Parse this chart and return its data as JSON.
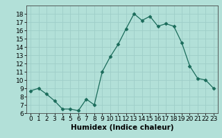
{
  "x": [
    0,
    1,
    2,
    3,
    4,
    5,
    6,
    7,
    8,
    9,
    10,
    11,
    12,
    13,
    14,
    15,
    16,
    17,
    18,
    19,
    20,
    21,
    22,
    23
  ],
  "y": [
    8.7,
    9.0,
    8.3,
    7.5,
    6.5,
    6.5,
    6.3,
    7.7,
    7.0,
    11.0,
    12.8,
    14.3,
    16.2,
    18.0,
    17.2,
    17.7,
    16.5,
    16.8,
    16.5,
    14.5,
    11.7,
    10.2,
    10.0,
    9.0
  ],
  "line_color": "#1a6b5a",
  "marker": "D",
  "marker_size": 2.5,
  "bg_color": "#b2e0d8",
  "grid_color": "#9ecec8",
  "xlabel": "Humidex (Indice chaleur)",
  "ylim": [
    6,
    19
  ],
  "xlim": [
    -0.5,
    23.5
  ],
  "yticks": [
    6,
    7,
    8,
    9,
    10,
    11,
    12,
    13,
    14,
    15,
    16,
    17,
    18
  ],
  "xticks": [
    0,
    1,
    2,
    3,
    4,
    5,
    6,
    7,
    8,
    9,
    10,
    11,
    12,
    13,
    14,
    15,
    16,
    17,
    18,
    19,
    20,
    21,
    22,
    23
  ],
  "tick_label_fontsize": 6.5,
  "xlabel_fontsize": 7.5,
  "xlabel_fontweight": "bold"
}
